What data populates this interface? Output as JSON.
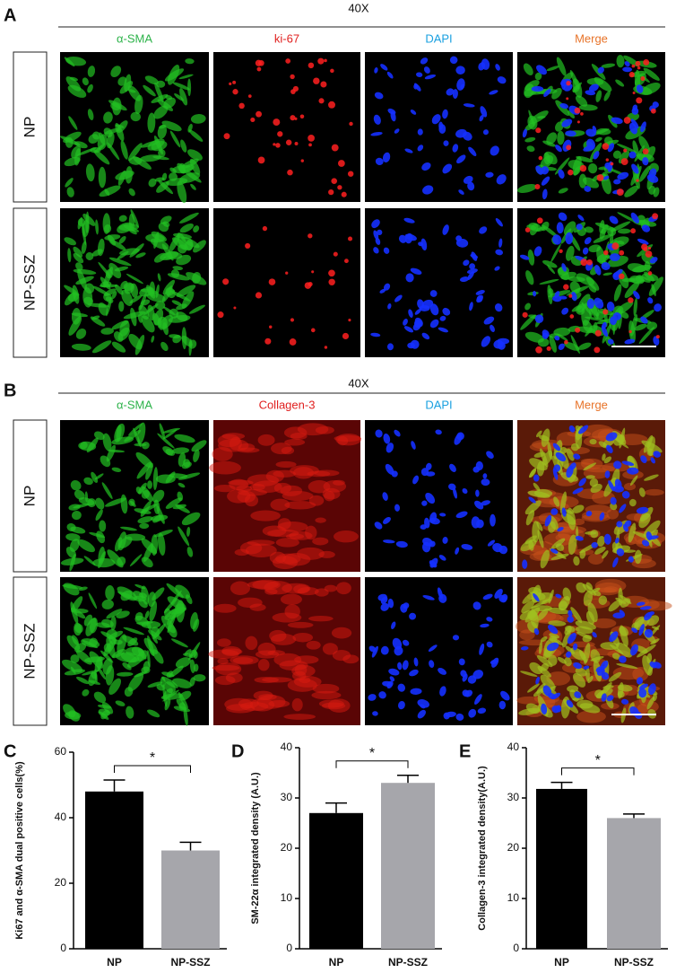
{
  "panels": [
    {
      "letter": "A",
      "magnification": "40X",
      "columns": [
        "α-SMA",
        "ki-67",
        "DAPI",
        "Merge"
      ],
      "rows": [
        "NP",
        "NP-SSZ"
      ]
    },
    {
      "letter": "B",
      "magnification": "40X",
      "columns": [
        "α-SMA",
        "Collagen-3",
        "DAPI",
        "Merge"
      ],
      "rows": [
        "NP",
        "NP-SSZ"
      ]
    }
  ],
  "chart_data": [
    {
      "type": "bar",
      "label": "C",
      "ylabel": "Ki67 and α-SMA dual positive cells(%)",
      "categories": [
        "NP",
        "NP-SSZ"
      ],
      "values": [
        48,
        30
      ],
      "errors": [
        3.5,
        2.5
      ],
      "colors": [
        "#000000",
        "#a6a6ab"
      ],
      "ylim": [
        0,
        60
      ],
      "yticks": [
        0,
        20,
        40,
        60
      ],
      "annotation": "*"
    },
    {
      "type": "bar",
      "label": "D",
      "ylabel": "SM-22α integrated density (A.U.)",
      "categories": [
        "NP",
        "NP-SSZ"
      ],
      "values": [
        27,
        33
      ],
      "errors": [
        2,
        1.5
      ],
      "colors": [
        "#000000",
        "#a6a6ab"
      ],
      "ylim": [
        0,
        40
      ],
      "yticks": [
        0,
        10,
        20,
        30,
        40
      ],
      "annotation": "*"
    },
    {
      "type": "bar",
      "label": "E",
      "ylabel": "Collagen-3 integrated density(A.U.)",
      "categories": [
        "NP",
        "NP-SSZ"
      ],
      "values": [
        31.8,
        26
      ],
      "errors": [
        1.3,
        0.8
      ],
      "colors": [
        "#000000",
        "#a6a6ab"
      ],
      "ylim": [
        0,
        40
      ],
      "yticks": [
        0,
        10,
        20,
        30,
        40
      ],
      "annotation": "*"
    }
  ]
}
